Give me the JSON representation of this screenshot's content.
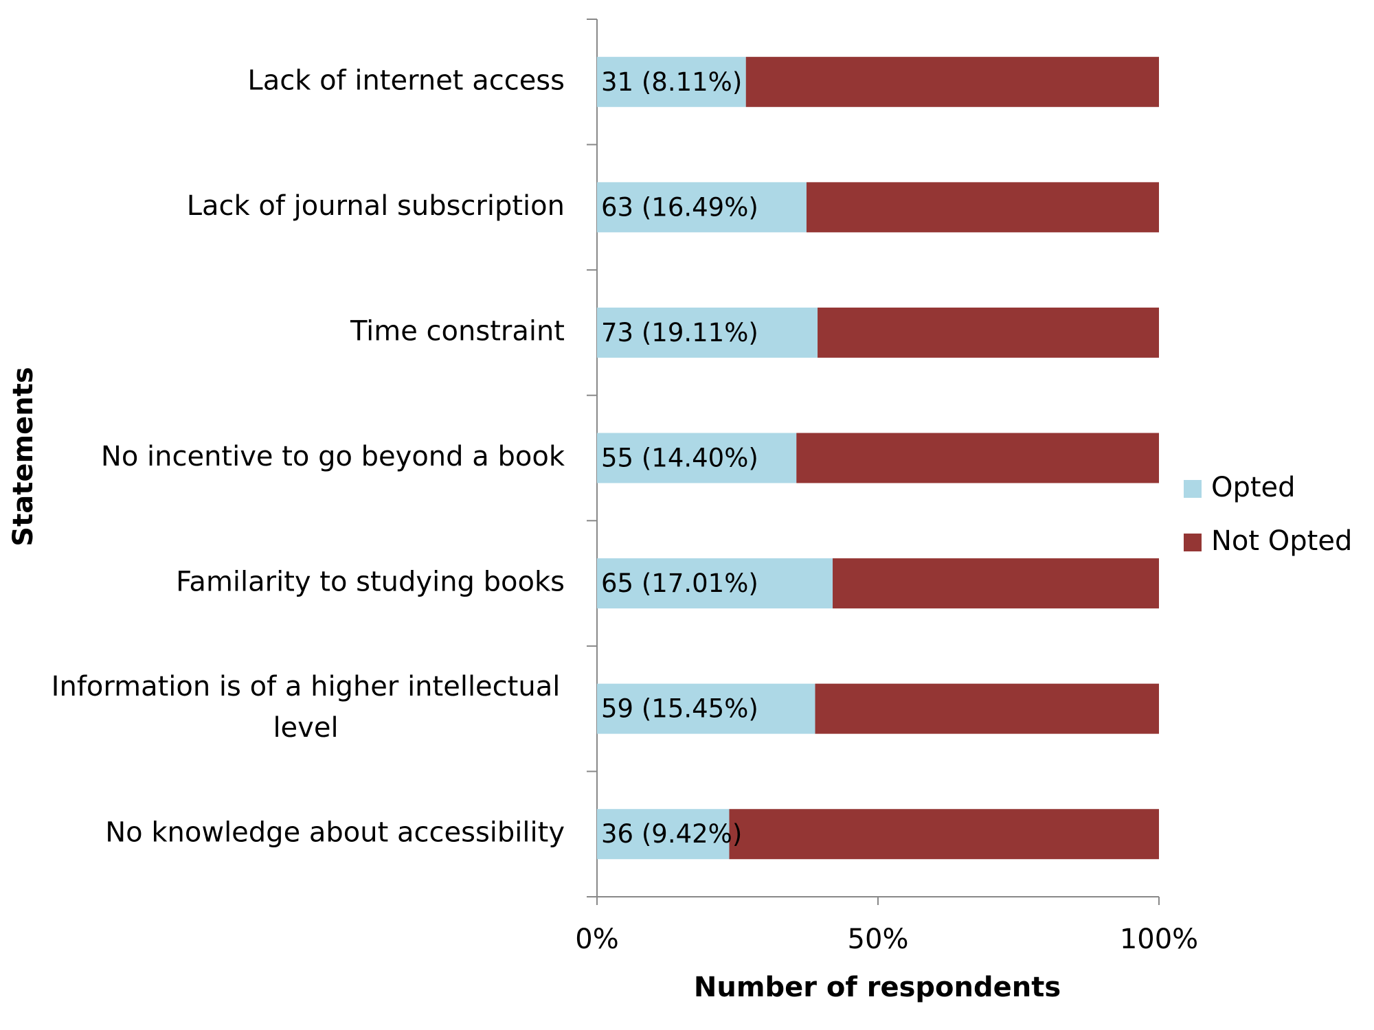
{
  "chart_data": {
    "type": "bar",
    "orientation": "horizontal",
    "stacked": "percent",
    "xlabel": "Number of respondents",
    "ylabel": "Statements",
    "categories": [
      "Lack of internet access",
      "Lack of journal subscription",
      "Time constraint",
      "No incentive to go beyond a book",
      "Familarity to studying books",
      "Information is of a higher intellectual level",
      "No knowledge about accessibility"
    ],
    "series": [
      {
        "name": "Opted",
        "color": "#add8e6",
        "values": [
          31,
          63,
          73,
          55,
          65,
          59,
          36
        ],
        "value_labels": [
          "31 (8.11%)",
          "63 (16.49%)",
          "73 (19.11%)",
          "55 (14.40%)",
          "65 (17.01%)",
          "59 (15.45%)",
          "36 (9.42%)"
        ]
      },
      {
        "name": "Not Opted",
        "color": "#943634",
        "values": [
          86,
          106,
          113,
          100,
          90,
          93,
          117
        ]
      }
    ],
    "xlim": [
      0,
      100
    ],
    "xticks": [
      {
        "value": 0,
        "label": "0%"
      },
      {
        "value": 50,
        "label": "50%"
      },
      {
        "value": 100,
        "label": "100%"
      }
    ],
    "legend": "right"
  }
}
